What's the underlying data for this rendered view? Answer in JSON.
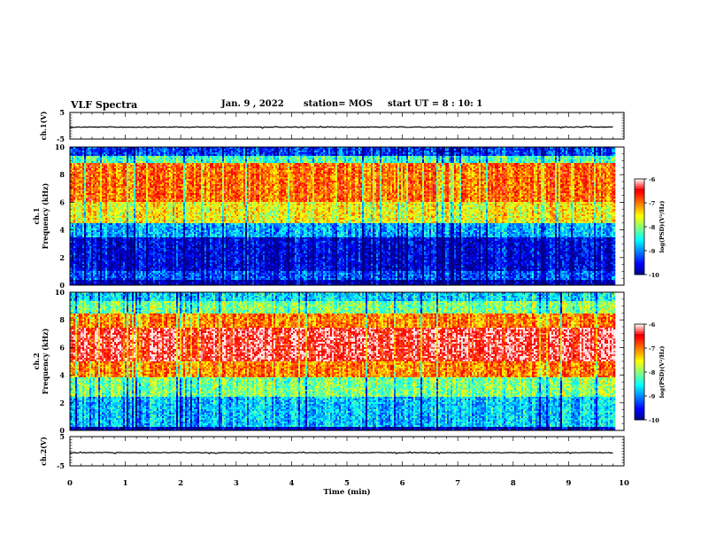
{
  "header": {
    "title": "VLF Spectra",
    "date": "Jan. 9 , 2022",
    "station": "station= MOS",
    "start_ut": "start UT =  8 : 10: 1"
  },
  "chart_data": [
    {
      "type": "line",
      "panel": "ch1-waveform",
      "ylabel": "ch.1(V)",
      "ylim": [
        -5,
        5
      ],
      "yticks": [
        "5",
        "-5"
      ],
      "x_range_min": [
        0,
        10
      ],
      "series": [
        {
          "values_approx": "flat near -0.5 V, small spikes"
        }
      ]
    },
    {
      "type": "heatmap",
      "panel": "ch1-spectrogram",
      "ylabel": "ch.1 Frequency (kHz)",
      "ylim": [
        0,
        10
      ],
      "yticks": [
        "0",
        "2",
        "4",
        "6",
        "8",
        "10"
      ],
      "x_range_min": [
        0,
        10
      ],
      "data_end_min": 9.85,
      "colorbar": {
        "label": "log(PSD)(V²/Hz)",
        "range": [
          -10,
          -6
        ],
        "ticks": [
          "-6",
          "-7",
          "-8",
          "-9",
          "-10"
        ]
      },
      "bands": [
        {
          "from_khz": 0.0,
          "to_khz": 0.4,
          "level": -9.8
        },
        {
          "from_khz": 0.4,
          "to_khz": 1.0,
          "level": -9.2
        },
        {
          "from_khz": 1.0,
          "to_khz": 3.5,
          "level": -9.6
        },
        {
          "from_khz": 3.5,
          "to_khz": 4.5,
          "level": -8.8
        },
        {
          "from_khz": 4.5,
          "to_khz": 6.0,
          "level": -7.5
        },
        {
          "from_khz": 6.0,
          "to_khz": 8.8,
          "level": -6.9
        },
        {
          "from_khz": 8.8,
          "to_khz": 9.3,
          "level": -8.2
        },
        {
          "from_khz": 9.3,
          "to_khz": 10.0,
          "level": -9.3
        }
      ]
    },
    {
      "type": "heatmap",
      "panel": "ch2-spectrogram",
      "ylabel": "ch.2 Frequency (kHz)",
      "ylim": [
        0,
        10
      ],
      "yticks": [
        "0",
        "2",
        "4",
        "6",
        "8",
        "10"
      ],
      "x_range_min": [
        0,
        10
      ],
      "data_end_min": 9.85,
      "colorbar": {
        "label": "log(PSD)(V²/Hz)",
        "range": [
          -10,
          -6
        ],
        "ticks": [
          "-6",
          "-7",
          "-8",
          "-9",
          "-10"
        ]
      },
      "bands": [
        {
          "from_khz": 0.0,
          "to_khz": 0.3,
          "level": -9.8
        },
        {
          "from_khz": 0.3,
          "to_khz": 2.5,
          "level": -8.7
        },
        {
          "from_khz": 2.5,
          "to_khz": 3.8,
          "level": -8.0
        },
        {
          "from_khz": 3.8,
          "to_khz": 5.0,
          "level": -7.0
        },
        {
          "from_khz": 5.0,
          "to_khz": 7.5,
          "level": -6.3
        },
        {
          "from_khz": 7.5,
          "to_khz": 8.5,
          "level": -7.0
        },
        {
          "from_khz": 8.5,
          "to_khz": 9.3,
          "level": -8.0
        },
        {
          "from_khz": 9.3,
          "to_khz": 10.0,
          "level": -8.6
        }
      ]
    },
    {
      "type": "line",
      "panel": "ch2-waveform",
      "ylabel": "ch.2(V)",
      "ylim": [
        -5,
        5
      ],
      "yticks": [
        "5",
        "-5"
      ],
      "x_range_min": [
        0,
        10
      ],
      "series": [
        {
          "values_approx": "flat near -0.5 V"
        }
      ]
    }
  ],
  "xaxis": {
    "label": "Time (min)",
    "ticks": [
      "0",
      "1",
      "2",
      "3",
      "4",
      "5",
      "6",
      "7",
      "8",
      "9",
      "10"
    ]
  }
}
